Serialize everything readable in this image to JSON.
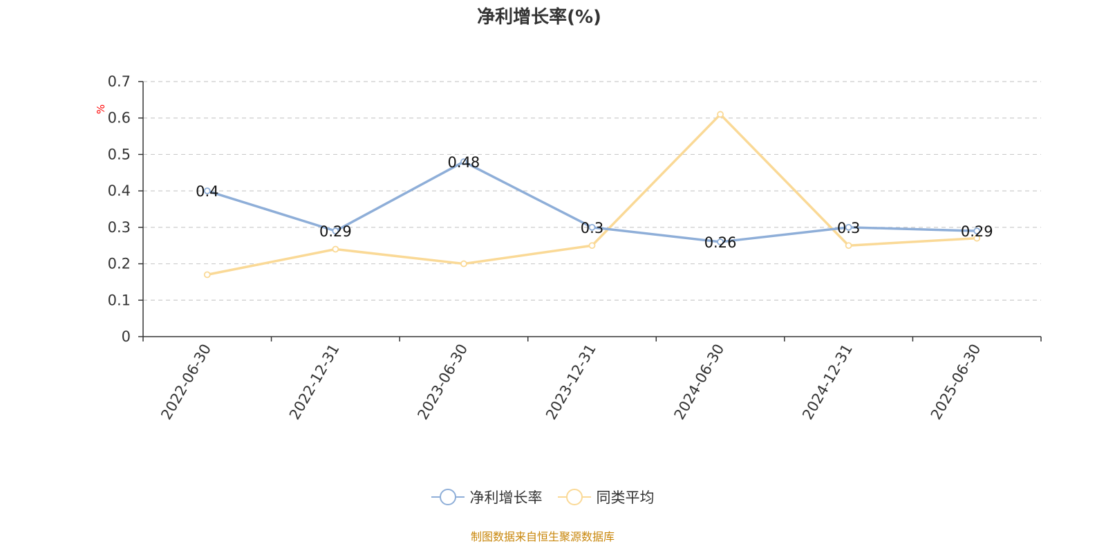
{
  "page": {
    "title": "净利增长率(%)",
    "source": "制图数据来自恒生聚源数据库"
  },
  "chart_data": {
    "type": "line",
    "title": "净利增长率(%)",
    "ylabel": "%",
    "ylim": [
      0,
      0.7
    ],
    "yticks": [
      "0",
      "0.1",
      "0.2",
      "0.3",
      "0.4",
      "0.5",
      "0.6",
      "0.7"
    ],
    "grid": true,
    "legend_position": "bottom-center",
    "categories": [
      "2022-06-30",
      "2022-12-31",
      "2023-06-30",
      "2023-12-31",
      "2024-06-30",
      "2024-12-31",
      "2025-06-30"
    ],
    "series": [
      {
        "name": "净利增长率",
        "color": "#8eaed8",
        "values": [
          0.4,
          0.29,
          0.48,
          0.3,
          0.26,
          0.3,
          0.29
        ],
        "labels": [
          "0.4",
          "0.29",
          "0.48",
          "0.3",
          "0.26",
          "0.3",
          "0.29"
        ],
        "show_labels": true
      },
      {
        "name": "同类平均",
        "color": "#fad996",
        "values": [
          0.17,
          0.24,
          0.2,
          0.25,
          0.61,
          0.25,
          0.27
        ],
        "show_labels": false
      }
    ],
    "axis_label_color": "#ff0000"
  }
}
